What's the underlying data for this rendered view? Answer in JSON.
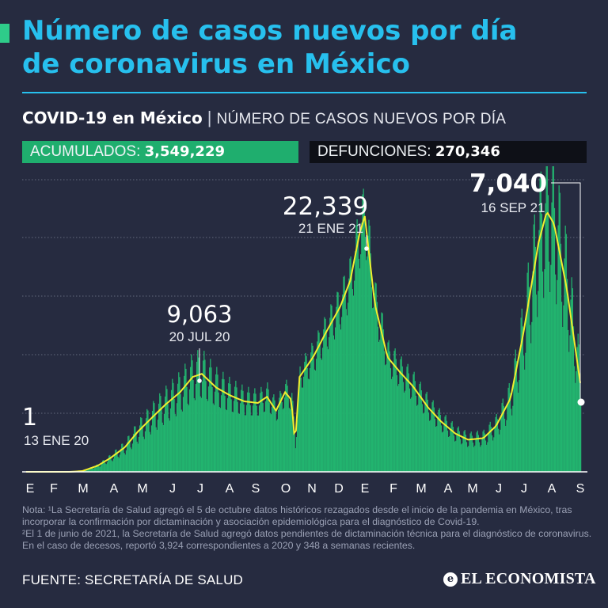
{
  "header": {
    "title_line1": "Número de casos nuevos por día",
    "title_line2": "de coronavirus en México",
    "subtitle_bold": "COVID-19 en México",
    "subtitle_sep": "|",
    "subtitle_light": "NÚMERO DE CASOS NUEVOS POR DÍA"
  },
  "stats": {
    "cumulative_label": "ACUMULADOS:",
    "cumulative_value": "3,549,229",
    "deaths_label": "DEFUNCIONES:",
    "deaths_value": "270,346"
  },
  "colors": {
    "background": "#262b40",
    "title": "#27c0ee",
    "bars": "#22b46f",
    "trend": "#f2ee2e",
    "grid": "#9aa0b4"
  },
  "chart_data": {
    "type": "bar",
    "description_units": "daily new cases; bars with 7-day average trend line",
    "x_range": [
      "2020-01-13",
      "2021-09-16"
    ],
    "grid": true,
    "month_ticks": [
      "E",
      "F",
      "M",
      "A",
      "M",
      "J",
      "J",
      "A",
      "S",
      "O",
      "N",
      "D",
      "E",
      "F",
      "M",
      "A",
      "M",
      "J",
      "J",
      "A",
      "S"
    ],
    "annotations": [
      {
        "value": "1",
        "date": "13 ENE 20",
        "x": "2020-01-13",
        "y": 1
      },
      {
        "value": "9,063",
        "date": "20 JUL 20",
        "x": "2020-07-20",
        "y": 9063
      },
      {
        "value": "22,339",
        "date": "21 ENE 21",
        "x": "2021-01-21",
        "y": 22339
      },
      {
        "value": "7,040",
        "date": "16 SEP 21",
        "x": "2021-09-16",
        "y": 7040
      }
    ],
    "trend_series": {
      "name": "",
      "points": [
        [
          "2020-01-13",
          0
        ],
        [
          "2020-02-01",
          0
        ],
        [
          "2020-03-01",
          0
        ],
        [
          "2020-03-15",
          50
        ],
        [
          "2020-04-01",
          400
        ],
        [
          "2020-04-15",
          900
        ],
        [
          "2020-05-01",
          1600
        ],
        [
          "2020-05-15",
          2600
        ],
        [
          "2020-06-01",
          3600
        ],
        [
          "2020-06-15",
          4400
        ],
        [
          "2020-07-01",
          5200
        ],
        [
          "2020-07-15",
          6200
        ],
        [
          "2020-07-25",
          6400
        ],
        [
          "2020-08-10",
          5500
        ],
        [
          "2020-08-25",
          5000
        ],
        [
          "2020-09-10",
          4600
        ],
        [
          "2020-09-25",
          4500
        ],
        [
          "2020-10-05",
          4900
        ],
        [
          "2020-10-15",
          4000
        ],
        [
          "2020-10-25",
          5200
        ],
        [
          "2020-11-01",
          4700
        ],
        [
          "2020-11-05",
          1800
        ],
        [
          "2020-11-10",
          6200
        ],
        [
          "2020-11-25",
          7500
        ],
        [
          "2020-12-10",
          9200
        ],
        [
          "2020-12-25",
          10800
        ],
        [
          "2021-01-05",
          12500
        ],
        [
          "2021-01-15",
          15500
        ],
        [
          "2021-01-21",
          16700
        ],
        [
          "2021-02-01",
          11000
        ],
        [
          "2021-02-15",
          7500
        ],
        [
          "2021-03-01",
          6500
        ],
        [
          "2021-03-15",
          5600
        ],
        [
          "2021-04-01",
          4200
        ],
        [
          "2021-04-15",
          3300
        ],
        [
          "2021-05-01",
          2500
        ],
        [
          "2021-05-15",
          2100
        ],
        [
          "2021-06-01",
          2200
        ],
        [
          "2021-06-15",
          3000
        ],
        [
          "2021-07-01",
          4800
        ],
        [
          "2021-07-15",
          9000
        ],
        [
          "2021-08-01",
          15000
        ],
        [
          "2021-08-10",
          17000
        ],
        [
          "2021-08-18",
          16200
        ],
        [
          "2021-09-01",
          12000
        ],
        [
          "2021-09-16",
          5800
        ]
      ]
    }
  },
  "footer": {
    "note_line1": "Nota: ¹La Secretaría de Salud agregó el 5 de octubre datos históricos rezagados desde el inicio de la pandemia en México, tras incorporar la confirmación por dictaminación y asociación epidemiológica para el diagnóstico de Covid-19.",
    "note_line2": "²El 1 de junio de 2021, la Secretaría de Salud agregó datos pendientes de dictaminación técnica para el diagnóstico de coronavirus. En el caso de decesos, reportó 3,924 correspondientes a 2020 y 348 a semanas recientes.",
    "source": "FUENTE: SECRETARÍA DE SALUD",
    "logo_icon": "e",
    "logo_text": "EL ECONOMISTA"
  }
}
